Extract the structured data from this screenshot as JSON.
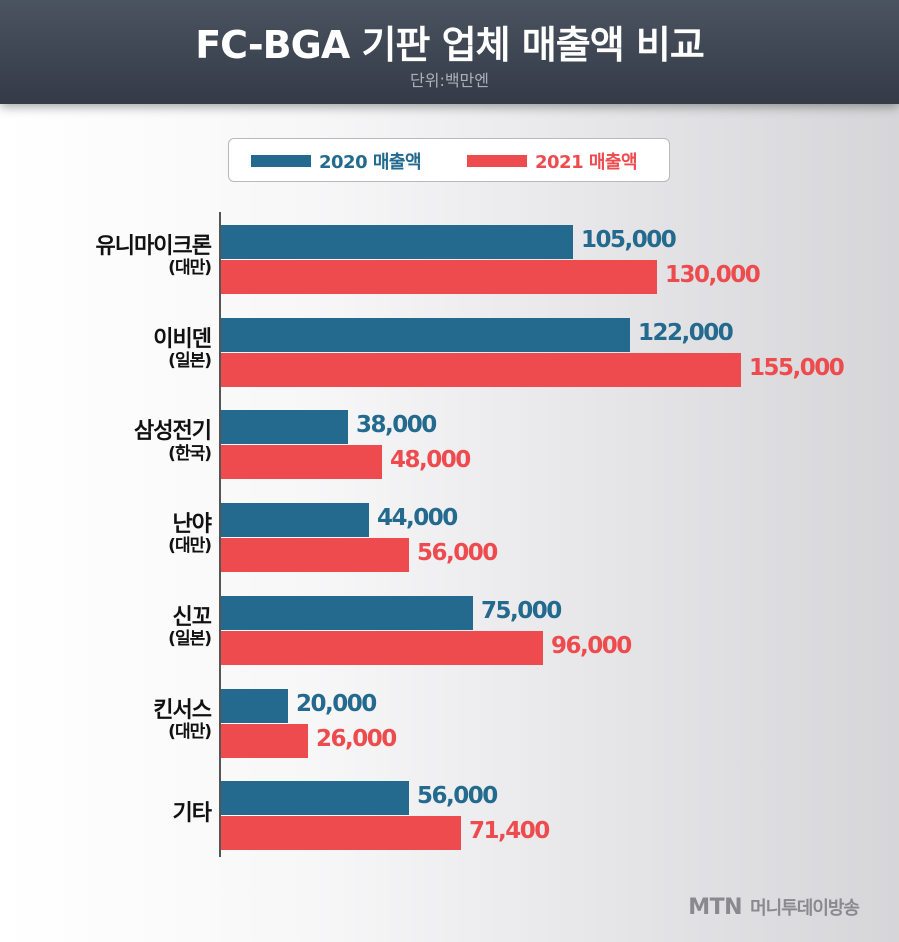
{
  "header": {
    "title": "FC-BGA 기판 업체 매출액 비교",
    "subtitle": "단위:백만엔"
  },
  "footer": {
    "logo": "MTN",
    "broadcaster": "머니투데이방송"
  },
  "colors": {
    "series_2020": "#236a8e",
    "series_2021": "#ee4b4f",
    "header_bg": "#3b4350"
  },
  "chart_data": {
    "type": "bar",
    "orientation": "horizontal",
    "title": "FC-BGA 기판 업체 매출액 비교",
    "subtitle": "단위:백만엔",
    "legend_position": "top",
    "grid": false,
    "xlim": [
      0,
      160000
    ],
    "categories": [
      {
        "name": "유니마이크론",
        "country": "(대만)"
      },
      {
        "name": "이비덴",
        "country": "(일본)"
      },
      {
        "name": "삼성전기",
        "country": "(한국)"
      },
      {
        "name": "난야",
        "country": "(대만)"
      },
      {
        "name": "신꼬",
        "country": "(일본)"
      },
      {
        "name": "킨서스",
        "country": "(대만)"
      },
      {
        "name": "기타",
        "country": ""
      }
    ],
    "series": [
      {
        "name": "2020 매출액",
        "color": "#236a8e",
        "values": [
          105000,
          122000,
          38000,
          44000,
          75000,
          20000,
          56000
        ],
        "labels": [
          "105,000",
          "122,000",
          "38,000",
          "44,000",
          "75,000",
          "20,000",
          "56,000"
        ]
      },
      {
        "name": "2021 매출액",
        "color": "#ee4b4f",
        "values": [
          130000,
          155000,
          48000,
          56000,
          96000,
          26000,
          71400
        ],
        "labels": [
          "130,000",
          "155,000",
          "48,000",
          "56,000",
          "96,000",
          "26,000",
          "71,400"
        ]
      }
    ]
  }
}
